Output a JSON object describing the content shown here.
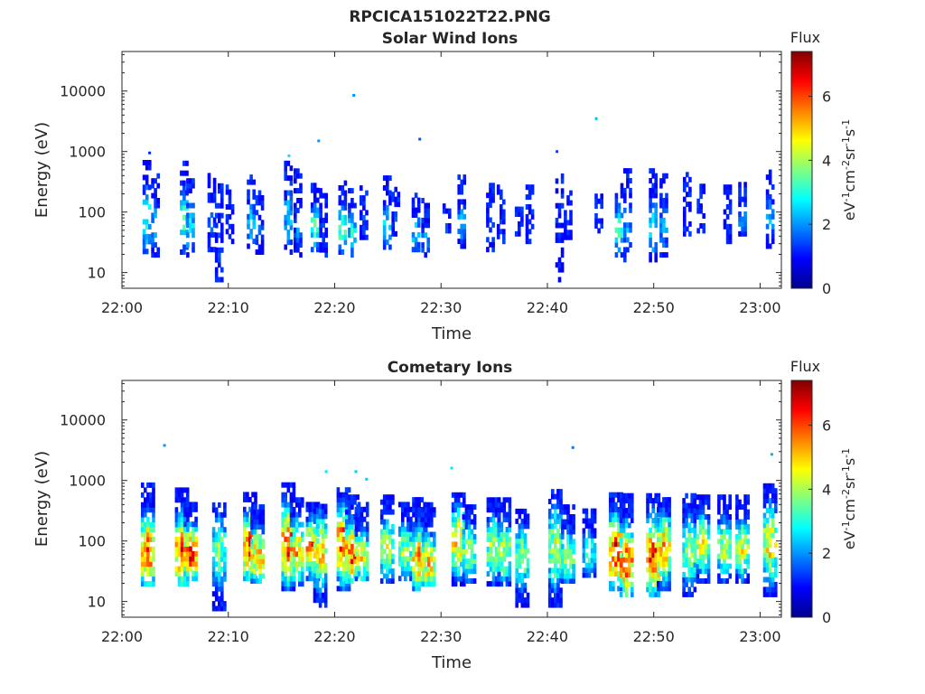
{
  "figure_title": "RPCICA151022T22.PNG",
  "colormap": [
    "#00008f",
    "#0000ff",
    "#0080ff",
    "#00ffff",
    "#80ff80",
    "#ffff00",
    "#ff8000",
    "#ff0000",
    "#800000"
  ],
  "chart_data": [
    {
      "type": "heatmap",
      "title": "Solar Wind Ions",
      "xlabel": "Time",
      "ylabel": "Energy (eV)",
      "x_ticks": [
        "22:00",
        "22:10",
        "22:20",
        "22:30",
        "22:40",
        "22:50",
        "23:00"
      ],
      "x_tick_minutes": [
        0,
        10,
        20,
        30,
        40,
        50,
        60
      ],
      "xlim_minutes": [
        0,
        62
      ],
      "y_scale": "log",
      "ylim": [
        5.5,
        45000
      ],
      "y_ticks": [
        "10",
        "100",
        "1000",
        "10000"
      ],
      "y_tick_values": [
        10,
        100,
        1000,
        10000
      ],
      "colorbar": {
        "title": "Flux",
        "unit": "eV-1cm-2sr-1s-1",
        "range": [
          0,
          7.4
        ],
        "ticks": [
          "0",
          "2",
          "4",
          "6"
        ],
        "tick_values": [
          0,
          2,
          4,
          6
        ]
      },
      "bursts": [
        {
          "t": 2.2,
          "emin": 17,
          "emax": 700,
          "peak": 3.2
        },
        {
          "t": 3.0,
          "emin": 18,
          "emax": 400,
          "peak": 2.4
        },
        {
          "t": 5.7,
          "emin": 20,
          "emax": 600,
          "peak": 3.3
        },
        {
          "t": 6.3,
          "emin": 18,
          "emax": 350,
          "peak": 3.0
        },
        {
          "t": 8.3,
          "emin": 22,
          "emax": 420,
          "peak": 1.7
        },
        {
          "t": 9.0,
          "emin": 7,
          "emax": 300,
          "peak": 1.5
        },
        {
          "t": 10.0,
          "emin": 30,
          "emax": 250,
          "peak": 1.6
        },
        {
          "t": 12.0,
          "emin": 25,
          "emax": 350,
          "peak": 2.7
        },
        {
          "t": 12.8,
          "emin": 20,
          "emax": 200,
          "peak": 1.8
        },
        {
          "t": 15.5,
          "emin": 20,
          "emax": 650,
          "peak": 2.6
        },
        {
          "t": 16.4,
          "emin": 18,
          "emax": 450,
          "peak": 2.0
        },
        {
          "t": 18.0,
          "emin": 22,
          "emax": 300,
          "peak": 3.4
        },
        {
          "t": 18.8,
          "emin": 18,
          "emax": 250,
          "peak": 1.7
        },
        {
          "t": 20.6,
          "emin": 20,
          "emax": 280,
          "peak": 3.8
        },
        {
          "t": 21.5,
          "emin": 18,
          "emax": 240,
          "peak": 3.0
        },
        {
          "t": 22.6,
          "emin": 35,
          "emax": 260,
          "peak": 1.6
        },
        {
          "t": 24.8,
          "emin": 20,
          "emax": 350,
          "peak": 2.8
        },
        {
          "t": 25.6,
          "emin": 40,
          "emax": 250,
          "peak": 1.6
        },
        {
          "t": 27.5,
          "emin": 22,
          "emax": 180,
          "peak": 2.8
        },
        {
          "t": 28.4,
          "emin": 18,
          "emax": 150,
          "peak": 2.2
        },
        {
          "t": 30.4,
          "emin": 45,
          "emax": 120,
          "peak": 1.5
        },
        {
          "t": 31.8,
          "emin": 25,
          "emax": 350,
          "peak": 2.4
        },
        {
          "t": 34.5,
          "emin": 22,
          "emax": 300,
          "peak": 1.4
        },
        {
          "t": 35.5,
          "emin": 30,
          "emax": 250,
          "peak": 1.4
        },
        {
          "t": 37.2,
          "emin": 40,
          "emax": 160,
          "peak": 1.4
        },
        {
          "t": 38.2,
          "emin": 30,
          "emax": 250,
          "peak": 1.4
        },
        {
          "t": 41.0,
          "emin": 7,
          "emax": 400,
          "peak": 1.3
        },
        {
          "t": 41.8,
          "emin": 35,
          "emax": 200,
          "peak": 1.3
        },
        {
          "t": 44.7,
          "emin": 45,
          "emax": 200,
          "peak": 1.4
        },
        {
          "t": 46.6,
          "emin": 18,
          "emax": 300,
          "peak": 3.4
        },
        {
          "t": 47.4,
          "emin": 15,
          "emax": 500,
          "peak": 2.3
        },
        {
          "t": 49.8,
          "emin": 15,
          "emax": 450,
          "peak": 3.0
        },
        {
          "t": 50.8,
          "emin": 18,
          "emax": 420,
          "peak": 2.4
        },
        {
          "t": 53.0,
          "emin": 40,
          "emax": 450,
          "peak": 1.4
        },
        {
          "t": 54.3,
          "emin": 45,
          "emax": 300,
          "peak": 1.3
        },
        {
          "t": 56.8,
          "emin": 30,
          "emax": 250,
          "peak": 1.3
        },
        {
          "t": 58.2,
          "emin": 40,
          "emax": 300,
          "peak": 2.2
        },
        {
          "t": 60.8,
          "emin": 25,
          "emax": 500,
          "peak": 2.4
        }
      ],
      "points": [
        {
          "t": 21.8,
          "e": 8500,
          "v": 2.0
        },
        {
          "t": 44.6,
          "e": 3500,
          "v": 2.3
        },
        {
          "t": 18.5,
          "e": 1500,
          "v": 2.0
        },
        {
          "t": 28.0,
          "e": 1600,
          "v": 1.5
        },
        {
          "t": 40.9,
          "e": 1000,
          "v": 1.4
        },
        {
          "t": 2.6,
          "e": 950,
          "v": 1.2
        },
        {
          "t": 15.7,
          "e": 850,
          "v": 2.6
        }
      ]
    },
    {
      "type": "heatmap",
      "title": "Cometary Ions",
      "xlabel": "Time",
      "ylabel": "Energy (eV)",
      "x_ticks": [
        "22:00",
        "22:10",
        "22:20",
        "22:30",
        "22:40",
        "22:50",
        "23:00"
      ],
      "x_tick_minutes": [
        0,
        10,
        20,
        30,
        40,
        50,
        60
      ],
      "xlim_minutes": [
        0,
        62
      ],
      "y_scale": "log",
      "ylim": [
        5.5,
        45000
      ],
      "y_ticks": [
        "10",
        "100",
        "1000",
        "10000"
      ],
      "y_tick_values": [
        10,
        100,
        1000,
        10000
      ],
      "colorbar": {
        "title": "Flux",
        "unit": "eV-1cm-2sr-1s-1",
        "range": [
          0,
          7.4
        ],
        "ticks": [
          "0",
          "2",
          "4",
          "6"
        ],
        "tick_values": [
          0,
          2,
          4,
          6
        ]
      },
      "bursts": [
        {
          "t": 2.3,
          "emin": 18,
          "emax": 900,
          "peak": 6.0,
          "center": 60
        },
        {
          "t": 5.5,
          "emin": 18,
          "emax": 650,
          "peak": 6.2,
          "center": 60
        },
        {
          "t": 6.3,
          "emin": 22,
          "emax": 400,
          "peak": 6.4,
          "center": 55
        },
        {
          "t": 9.0,
          "emin": 7,
          "emax": 400,
          "peak": 4.0,
          "center": 60
        },
        {
          "t": 11.9,
          "emin": 22,
          "emax": 600,
          "peak": 6.6,
          "center": 70
        },
        {
          "t": 12.6,
          "emin": 20,
          "emax": 400,
          "peak": 5.5,
          "center": 50
        },
        {
          "t": 15.5,
          "emin": 15,
          "emax": 900,
          "peak": 6.3,
          "center": 80
        },
        {
          "t": 16.3,
          "emin": 18,
          "emax": 500,
          "peak": 5.5,
          "center": 60
        },
        {
          "t": 17.8,
          "emin": 22,
          "emax": 400,
          "peak": 6.0,
          "center": 70
        },
        {
          "t": 18.5,
          "emin": 8,
          "emax": 350,
          "peak": 5.2,
          "center": 60
        },
        {
          "t": 20.7,
          "emin": 15,
          "emax": 700,
          "peak": 6.6,
          "center": 80
        },
        {
          "t": 21.5,
          "emin": 20,
          "emax": 500,
          "peak": 6.2,
          "center": 55
        },
        {
          "t": 22.4,
          "emin": 22,
          "emax": 400,
          "peak": 4.8,
          "center": 50
        },
        {
          "t": 24.8,
          "emin": 20,
          "emax": 500,
          "peak": 4.6,
          "center": 70
        },
        {
          "t": 26.5,
          "emin": 22,
          "emax": 400,
          "peak": 4.5,
          "center": 60
        },
        {
          "t": 27.8,
          "emin": 15,
          "emax": 450,
          "peak": 5.6,
          "center": 45
        },
        {
          "t": 28.7,
          "emin": 18,
          "emax": 380,
          "peak": 5.2,
          "center": 40
        },
        {
          "t": 31.5,
          "emin": 18,
          "emax": 600,
          "peak": 5.5,
          "center": 90
        },
        {
          "t": 32.5,
          "emin": 20,
          "emax": 400,
          "peak": 4.3,
          "center": 60
        },
        {
          "t": 34.8,
          "emin": 18,
          "emax": 500,
          "peak": 4.4,
          "center": 70
        },
        {
          "t": 35.8,
          "emin": 18,
          "emax": 500,
          "peak": 4.4,
          "center": 60
        },
        {
          "t": 37.5,
          "emin": 8,
          "emax": 300,
          "peak": 4.0,
          "center": 50
        },
        {
          "t": 40.6,
          "emin": 8,
          "emax": 700,
          "peak": 4.5,
          "center": 70
        },
        {
          "t": 41.8,
          "emin": 20,
          "emax": 350,
          "peak": 4.3,
          "center": 50
        },
        {
          "t": 43.8,
          "emin": 25,
          "emax": 300,
          "peak": 3.5,
          "center": 60
        },
        {
          "t": 46.3,
          "emin": 15,
          "emax": 600,
          "peak": 6.6,
          "center": 60
        },
        {
          "t": 47.3,
          "emin": 12,
          "emax": 550,
          "peak": 6.0,
          "center": 40
        },
        {
          "t": 49.8,
          "emin": 12,
          "emax": 600,
          "peak": 6.4,
          "center": 50
        },
        {
          "t": 50.8,
          "emin": 15,
          "emax": 500,
          "peak": 5.6,
          "center": 70
        },
        {
          "t": 53.2,
          "emin": 12,
          "emax": 600,
          "peak": 4.2,
          "center": 60
        },
        {
          "t": 54.5,
          "emin": 20,
          "emax": 500,
          "peak": 4.8,
          "center": 80
        },
        {
          "t": 56.5,
          "emin": 20,
          "emax": 500,
          "peak": 4.5,
          "center": 70
        },
        {
          "t": 58.2,
          "emin": 20,
          "emax": 500,
          "peak": 4.6,
          "center": 70
        },
        {
          "t": 60.8,
          "emin": 12,
          "emax": 800,
          "peak": 5.0,
          "center": 80
        }
      ],
      "points": [
        {
          "t": 4.0,
          "e": 3800,
          "v": 2.0
        },
        {
          "t": 42.4,
          "e": 3500,
          "v": 1.8
        },
        {
          "t": 61.1,
          "e": 2700,
          "v": 2.2
        },
        {
          "t": 19.2,
          "e": 1400,
          "v": 2.6
        },
        {
          "t": 22.0,
          "e": 1400,
          "v": 2.4
        },
        {
          "t": 31.0,
          "e": 1600,
          "v": 2.6
        },
        {
          "t": 23.0,
          "e": 1050,
          "v": 2.4
        }
      ]
    }
  ]
}
